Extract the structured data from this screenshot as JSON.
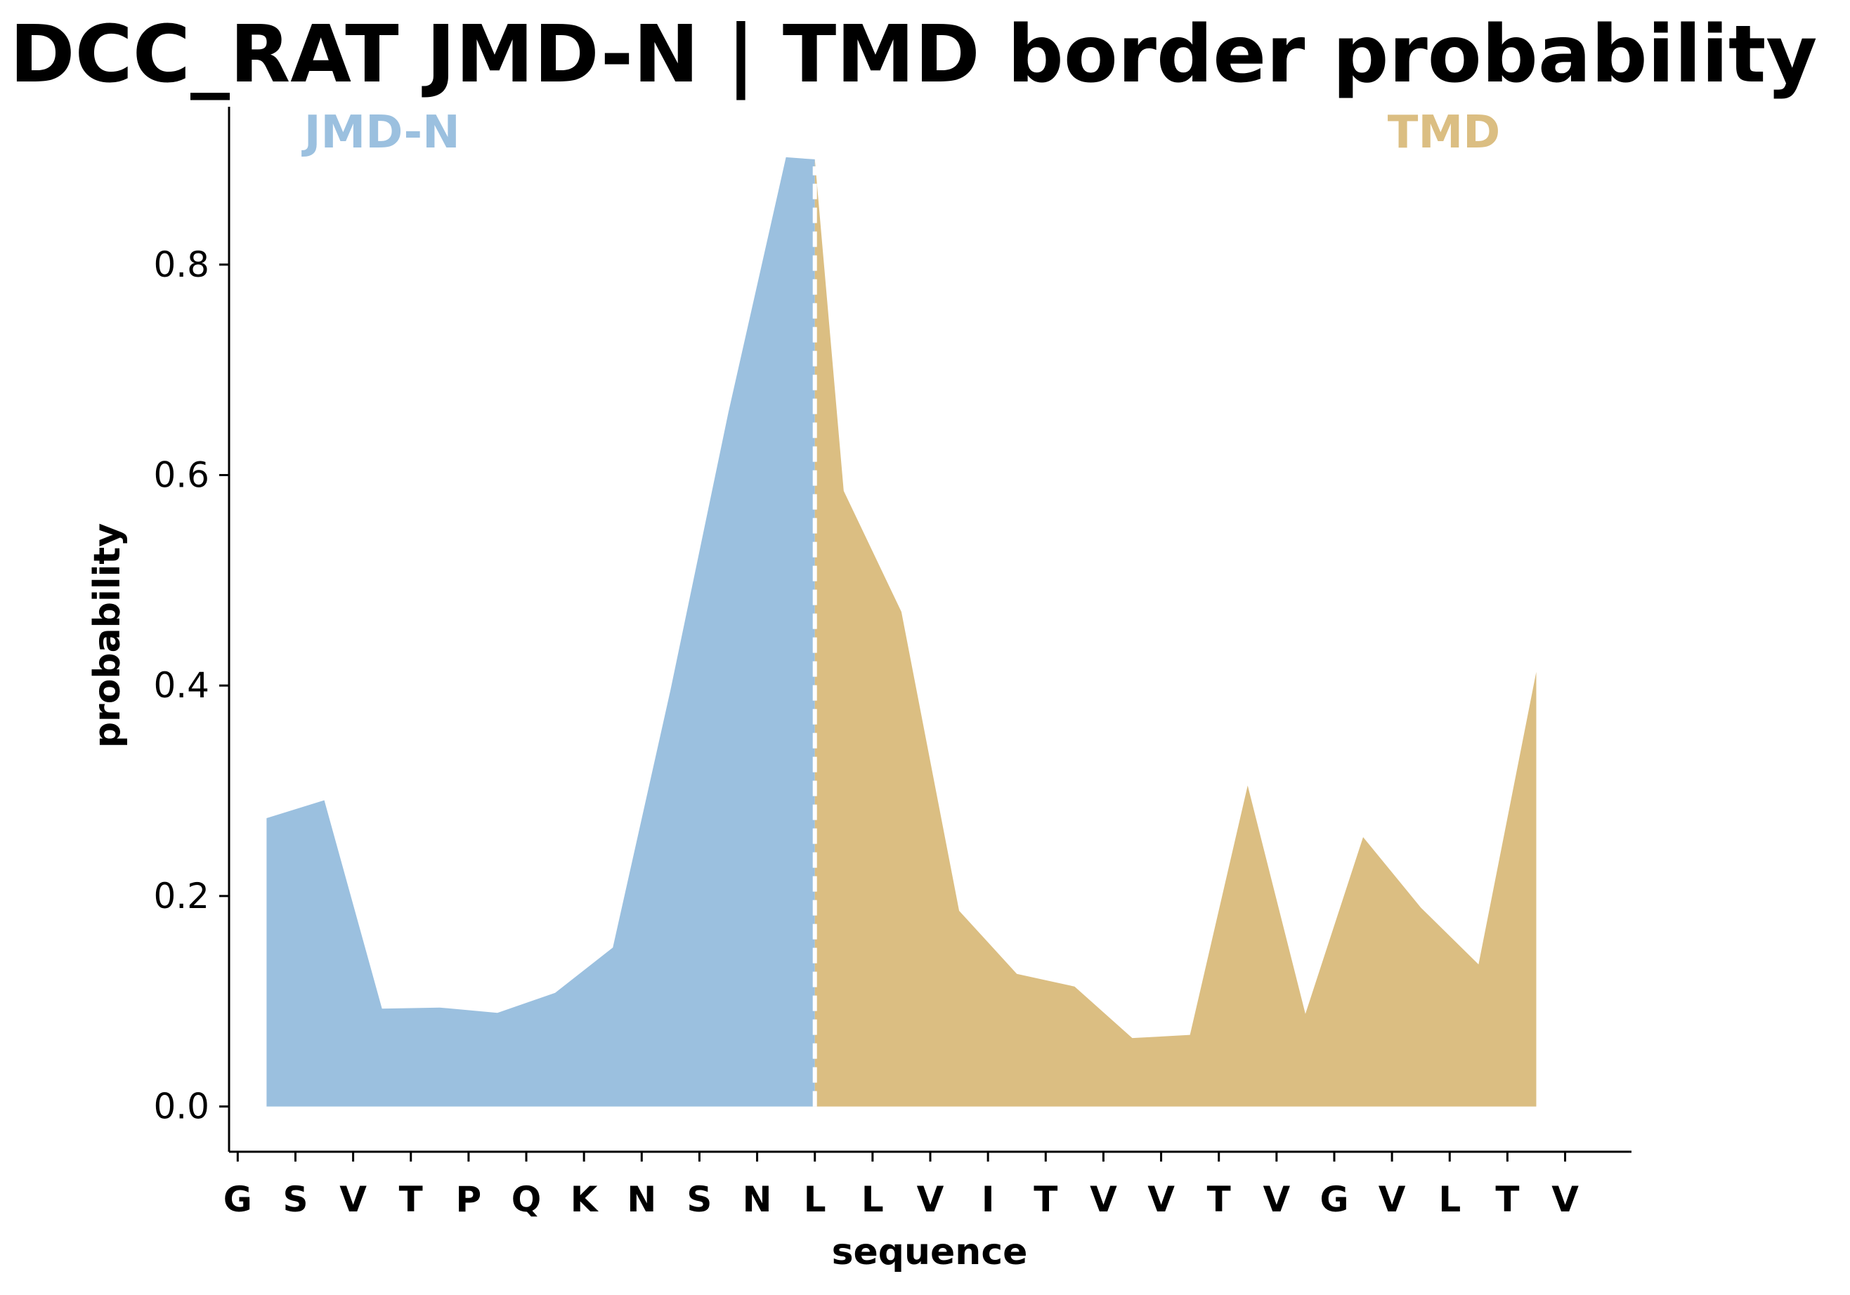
{
  "chart_data": {
    "type": "area",
    "title": "DCC_RAT JMD-N | TMD border probability",
    "xlabel": "sequence",
    "ylabel": "probability",
    "categories": [
      "G",
      "S",
      "V",
      "T",
      "P",
      "Q",
      "K",
      "N",
      "S",
      "N",
      "L",
      "L",
      "V",
      "I",
      "T",
      "V",
      "V",
      "T",
      "V",
      "G",
      "V",
      "L",
      "T",
      "V"
    ],
    "ylim": [
      -0.043,
      0.95
    ],
    "yticks": [
      "0.0",
      "0.2",
      "0.4",
      "0.6",
      "0.8"
    ],
    "border_x": 10.0,
    "regions": [
      {
        "name": "JMD-N",
        "color": "#9bc0df"
      },
      {
        "name": "TMD",
        "color": "#dbbe82"
      }
    ],
    "series": [
      {
        "x": [
          0.5,
          1.5,
          2.5,
          3.5,
          4.5,
          5.5,
          6.5,
          7.5,
          8.5,
          9.5,
          10.0,
          10.5,
          11.5,
          12.5,
          13.5,
          14.5,
          15.5,
          16.5,
          17.5,
          18.5,
          19.5,
          20.5,
          21.5,
          22.5
        ],
        "values": [
          0.274,
          0.291,
          0.093,
          0.094,
          0.089,
          0.108,
          0.151,
          0.396,
          0.659,
          0.902,
          0.9,
          0.585,
          0.47,
          0.186,
          0.126,
          0.114,
          0.065,
          0.068,
          0.305,
          0.088,
          0.256,
          0.189,
          0.135,
          0.413
        ]
      }
    ],
    "grid": false,
    "colors": {
      "border_line": "#ffffff",
      "axis": "#000000"
    }
  }
}
